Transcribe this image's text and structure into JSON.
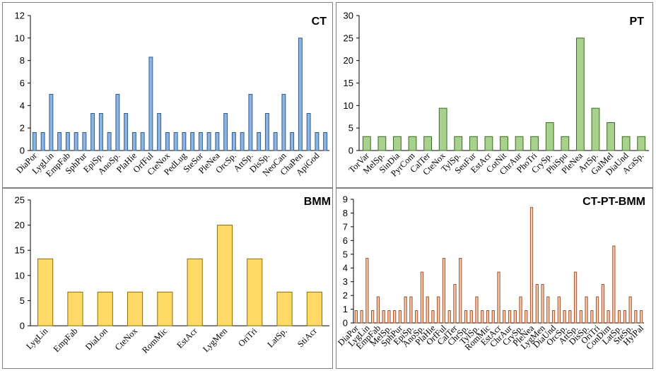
{
  "chart_data": [
    {
      "type": "bar",
      "title": "CT",
      "color": "#8DB4E2",
      "stroke": "#2E5E8E",
      "ylim": [
        0,
        12
      ],
      "yticks": [
        0,
        2,
        4,
        6,
        8,
        10,
        12
      ],
      "categories": [
        "DiaPor",
        "",
        "LygLin",
        "",
        "EmpFab",
        "",
        "SphPur",
        "",
        "EpiSp.",
        "",
        "AnoSp.",
        "",
        "PlaHie",
        "",
        "OrfFul",
        "",
        "CteNox",
        "",
        "PedLug",
        "",
        "SteSor",
        "",
        "PleNea",
        "",
        "OrcSp.",
        "",
        "AttSp.",
        "",
        "DisSp.",
        "",
        "NeoCan",
        "",
        "ChaPen",
        "",
        "ApiGod",
        ""
      ],
      "values": [
        1.6,
        1.6,
        5.0,
        1.6,
        1.6,
        1.6,
        1.6,
        3.3,
        3.3,
        1.6,
        5.0,
        3.3,
        1.6,
        1.6,
        8.3,
        3.3,
        1.6,
        1.6,
        1.6,
        1.6,
        1.6,
        1.6,
        1.6,
        3.3,
        1.6,
        1.6,
        5.0,
        1.6,
        3.3,
        1.6,
        5.0,
        1.6,
        10.0,
        3.3,
        1.6,
        1.6
      ]
    },
    {
      "type": "bar",
      "title": "PT",
      "color": "#A9D18E",
      "stroke": "#3A6B1F",
      "ylim": [
        0,
        30
      ],
      "yticks": [
        0,
        5,
        10,
        15,
        20,
        25,
        30
      ],
      "categories": [
        "TorVar",
        "MelSp.",
        "SinDia",
        "PyrCom",
        "CalTer",
        "CteNox",
        "TylSp.",
        "SeuFur",
        "EstAcr",
        "CotNit",
        "ChrAur",
        "PhoTri",
        "CrySp.",
        "PhiSpu",
        "PleNea",
        "ArtSp.",
        "GalMel",
        "DiaUnd",
        "AcaSp."
      ],
      "values": [
        3.1,
        3.1,
        3.1,
        3.1,
        3.1,
        9.4,
        3.1,
        3.1,
        3.1,
        3.1,
        3.1,
        3.1,
        6.2,
        3.1,
        25.0,
        9.4,
        6.2,
        3.1,
        3.1
      ]
    },
    {
      "type": "bar",
      "title": "BMM",
      "color": "#FFD966",
      "stroke": "#8A6D00",
      "ylim": [
        0,
        25
      ],
      "yticks": [
        0,
        5,
        10,
        15,
        20,
        25
      ],
      "categories": [
        "LygLin",
        "EmpFab",
        "DiaLon",
        "CteNox",
        "RomMic",
        "EstAcr",
        "LygMen",
        "OriTri",
        "LatSp.",
        "StiAcr"
      ],
      "values": [
        13.3,
        6.7,
        6.7,
        6.7,
        6.7,
        13.3,
        20.0,
        13.3,
        6.7,
        6.7
      ]
    },
    {
      "type": "bar",
      "title": "CT-PT-BMM",
      "color": "#F8CBAD",
      "stroke": "#A0522D",
      "ylim": [
        0,
        9
      ],
      "yticks": [
        0,
        1,
        2,
        3,
        4,
        5,
        6,
        7,
        8,
        9
      ],
      "categories": [
        "DiaPor",
        "",
        "LygLin",
        "",
        "EmpFab",
        "",
        "MelSp.",
        "",
        "SphPur",
        "",
        "EpiSp.",
        "",
        "AnoSp.",
        "",
        "PlaHie",
        "",
        "OrfFul",
        "",
        "CalTer",
        "",
        "ChrSp.",
        "",
        "TylSp.",
        "",
        "RomMic",
        "",
        "EstAcr",
        "",
        "ChrAur",
        "",
        "CrySp.",
        "",
        "PleNea",
        "",
        "LygMen",
        "",
        "DiaUnd",
        "",
        "OrcSp.",
        "",
        "AttSp.",
        "",
        "DisSp.",
        "",
        "OriTri",
        "",
        "ConDim",
        "",
        "LatSp.",
        "",
        "SteSp.",
        "",
        "HylPal"
      ],
      "values": [
        0.9,
        0.9,
        4.7,
        0.9,
        1.9,
        0.9,
        0.9,
        0.9,
        0.9,
        1.9,
        1.9,
        0.9,
        3.7,
        1.9,
        0.9,
        1.9,
        4.7,
        0.9,
        2.8,
        4.7,
        0.9,
        0.9,
        1.9,
        0.9,
        0.9,
        0.9,
        3.7,
        0.9,
        0.9,
        0.9,
        1.9,
        0.9,
        8.4,
        2.8,
        2.8,
        1.9,
        0.9,
        1.9,
        0.9,
        0.9,
        3.7,
        0.9,
        1.9,
        0.9,
        1.9,
        2.8,
        0.9,
        5.6,
        0.9,
        0.9,
        1.9,
        0.9,
        0.9
      ]
    }
  ]
}
